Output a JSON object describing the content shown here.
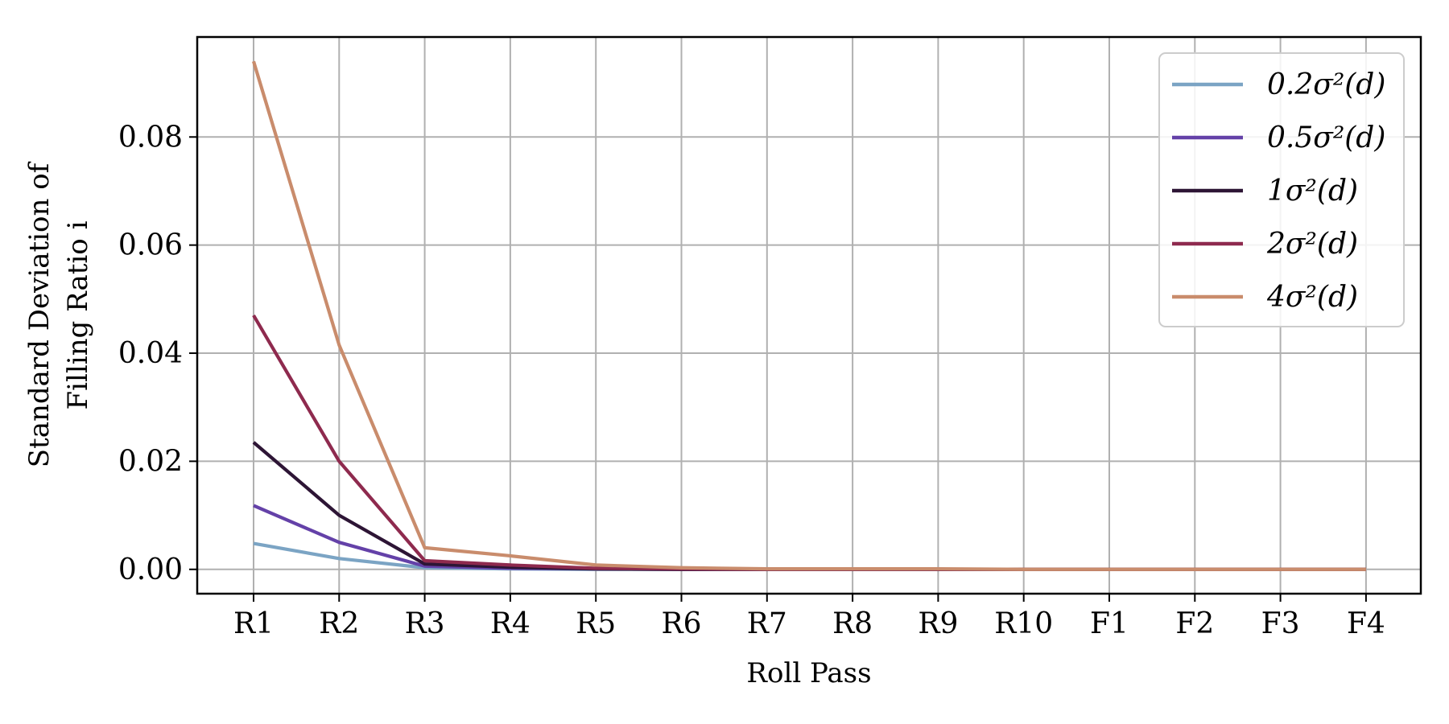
{
  "chart_data": {
    "type": "line",
    "categories": [
      "R1",
      "R2",
      "R3",
      "R4",
      "R5",
      "R6",
      "R7",
      "R8",
      "R9",
      "R10",
      "F1",
      "F2",
      "F3",
      "F4"
    ],
    "xlabel": "Roll Pass",
    "ylabel_lines": [
      "Standard Deviation of",
      "Filling Ratio i"
    ],
    "ylim": [
      -0.0045,
      0.0985
    ],
    "yticks": [
      0.0,
      0.02,
      0.04,
      0.06,
      0.08
    ],
    "ytick_labels": [
      "0.00",
      "0.02",
      "0.04",
      "0.06",
      "0.08"
    ],
    "grid": true,
    "legend_position": "top-right",
    "series": [
      {
        "name": "0.2σ²(d)",
        "color": "#7ba4c4",
        "values": [
          0.0048,
          0.002,
          0.0003,
          0.0001,
          0.0,
          0.0,
          0.0,
          0.0,
          0.0,
          0.0,
          0.0,
          0.0,
          0.0,
          0.0
        ]
      },
      {
        "name": "0.5σ²(d)",
        "color": "#6441a8",
        "values": [
          0.0118,
          0.005,
          0.0006,
          0.0002,
          0.0001,
          0.0,
          0.0,
          0.0,
          0.0,
          0.0,
          0.0,
          0.0,
          0.0,
          0.0
        ]
      },
      {
        "name": "1σ²(d)",
        "color": "#2d1535",
        "values": [
          0.0235,
          0.01,
          0.001,
          0.0004,
          0.0001,
          0.0,
          0.0,
          0.0,
          0.0,
          0.0,
          0.0,
          0.0,
          0.0,
          0.0
        ]
      },
      {
        "name": "2σ²(d)",
        "color": "#8e2a4e",
        "values": [
          0.047,
          0.02,
          0.0016,
          0.0008,
          0.0002,
          0.0001,
          0.0,
          0.0,
          0.0,
          0.0,
          0.0,
          0.0,
          0.0,
          0.0
        ]
      },
      {
        "name": "4σ²(d)",
        "color": "#c98c6c",
        "values": [
          0.094,
          0.0415,
          0.004,
          0.0025,
          0.0008,
          0.0003,
          0.0001,
          0.0001,
          0.0001,
          0.0,
          0.0,
          0.0,
          0.0,
          0.0
        ]
      }
    ]
  }
}
